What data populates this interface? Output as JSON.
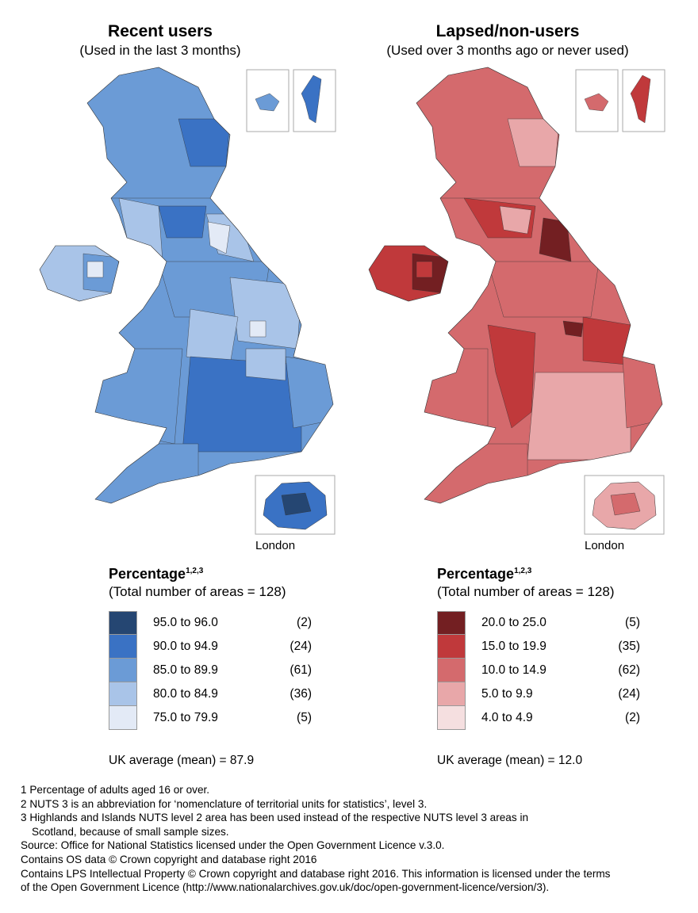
{
  "maps": [
    {
      "title": "Recent users",
      "subtitle": "(Used in the last 3 months)",
      "inset_label": "London",
      "legend": {
        "title": "Percentage",
        "sup": "1,2,3",
        "subtitle": "(Total number of areas = 128)",
        "bins": [
          {
            "range": "95.0 to 96.0",
            "count": "(2)",
            "color": "#254672"
          },
          {
            "range": "90.0 to 94.9",
            "count": "(24)",
            "color": "#3a72c4"
          },
          {
            "range": "85.0 to 89.9",
            "count": "(61)",
            "color": "#6b9bd6"
          },
          {
            "range": "80.0 to 84.9",
            "count": "(36)",
            "color": "#a9c4e8"
          },
          {
            "range": "75.0 to 79.9",
            "count": "(5)",
            "color": "#e3eaf6"
          }
        ],
        "average": "UK average (mean) = 87.9"
      }
    },
    {
      "title": "Lapsed/non-users",
      "subtitle": "(Used over 3 months ago or never used)",
      "inset_label": "London",
      "legend": {
        "title": "Percentage",
        "sup": "1,2,3",
        "subtitle": "(Total number of areas = 128)",
        "bins": [
          {
            "range": "20.0 to 25.0",
            "count": "(5)",
            "color": "#731f22"
          },
          {
            "range": "15.0 to 19.9",
            "count": "(35)",
            "color": "#c0393b"
          },
          {
            "range": "10.0 to 14.9",
            "count": "(62)",
            "color": "#d46a6d"
          },
          {
            "range": "5.0 to 9.9",
            "count": "(24)",
            "color": "#e8a7a9"
          },
          {
            "range": "4.0 to 4.9",
            "count": "(2)",
            "color": "#f5dfe0"
          }
        ],
        "average": "UK average (mean) = 12.0"
      }
    }
  ],
  "notes": [
    "1 Percentage of adults aged 16 or over.",
    "2 NUTS 3 is an abbreviation for ‘nomenclature of territorial units for statistics’, level 3.",
    "3 Highlands and Islands NUTS level 2 area has been used instead of the respective NUTS level 3 areas in",
    "   Scotland, because of small sample sizes.",
    "Source: Office for National Statistics licensed under the Open Government Licence v.3.0.",
    "Contains OS data © Crown copyright and database right 2016",
    "Contains LPS Intellectual Property © Crown copyright and database right 2016. This information is licensed under the terms",
    "of the Open Government Licence (http://www.nationalarchives.gov.uk/doc/open-government-licence/version/3)."
  ]
}
